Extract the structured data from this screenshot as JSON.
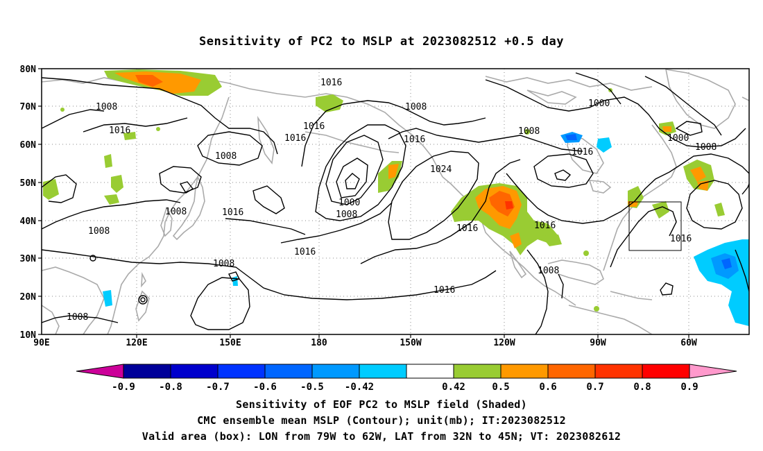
{
  "title": "Sensitivity of PC2 to MSLP at 2023082512 +0.5 day",
  "map": {
    "lat_labels": [
      "80N",
      "70N",
      "60N",
      "50N",
      "40N",
      "30N",
      "20N",
      "10N"
    ],
    "lon_labels": [
      "90E",
      "120E",
      "150E",
      "180",
      "150W",
      "120W",
      "90W",
      "60W"
    ],
    "contour_labels": [
      {
        "text": "1016"
      },
      {
        "text": "1008"
      },
      {
        "text": "1008"
      },
      {
        "text": "1000"
      },
      {
        "text": "1016"
      },
      {
        "text": "1016"
      },
      {
        "text": "1008"
      },
      {
        "text": "1016"
      },
      {
        "text": "1000"
      },
      {
        "text": "1008"
      },
      {
        "text": "1016"
      },
      {
        "text": "1008"
      },
      {
        "text": "1016"
      },
      {
        "text": "1024"
      },
      {
        "text": "1000"
      },
      {
        "text": "1008"
      },
      {
        "text": "1008"
      },
      {
        "text": "1008"
      },
      {
        "text": "1016"
      },
      {
        "text": "1016"
      },
      {
        "text": "1016"
      },
      {
        "text": "1016"
      },
      {
        "text": "1008"
      },
      {
        "text": "1008"
      },
      {
        "text": "1016"
      },
      {
        "text": "1016"
      },
      {
        "text": "1008"
      }
    ],
    "colors": {
      "green": "#99cc33",
      "orange": "#ff9900",
      "dark_orange": "#ff6600",
      "red_orange": "#ff3300",
      "light_blue": "#00ccff",
      "blue": "#0099ff",
      "mid_blue": "#0066ff",
      "coast": "#aaaaaa"
    }
  },
  "colorbar": {
    "labels": [
      "-0.9",
      "-0.8",
      "-0.7",
      "-0.6",
      "-0.5",
      "-0.42",
      "0.42",
      "0.5",
      "0.6",
      "0.7",
      "0.8",
      "0.9"
    ],
    "colors": [
      "#cc0099",
      "#000099",
      "#0000cc",
      "#0033ff",
      "#0066ff",
      "#0099ff",
      "#00ccff",
      "#ffffff",
      "#99cc33",
      "#ff9900",
      "#ff6600",
      "#ff3300",
      "#ff0000",
      "#ff99cc"
    ]
  },
  "footer": {
    "line1": "Sensitivity of EOF PC2 to MSLP field (Shaded)",
    "line2": "CMC ensemble mean MSLP (Contour); unit(mb); IT:2023082512",
    "line3": "Valid area (box): LON from 79W to 62W, LAT from 32N to 45N; VT: 2023082612"
  }
}
